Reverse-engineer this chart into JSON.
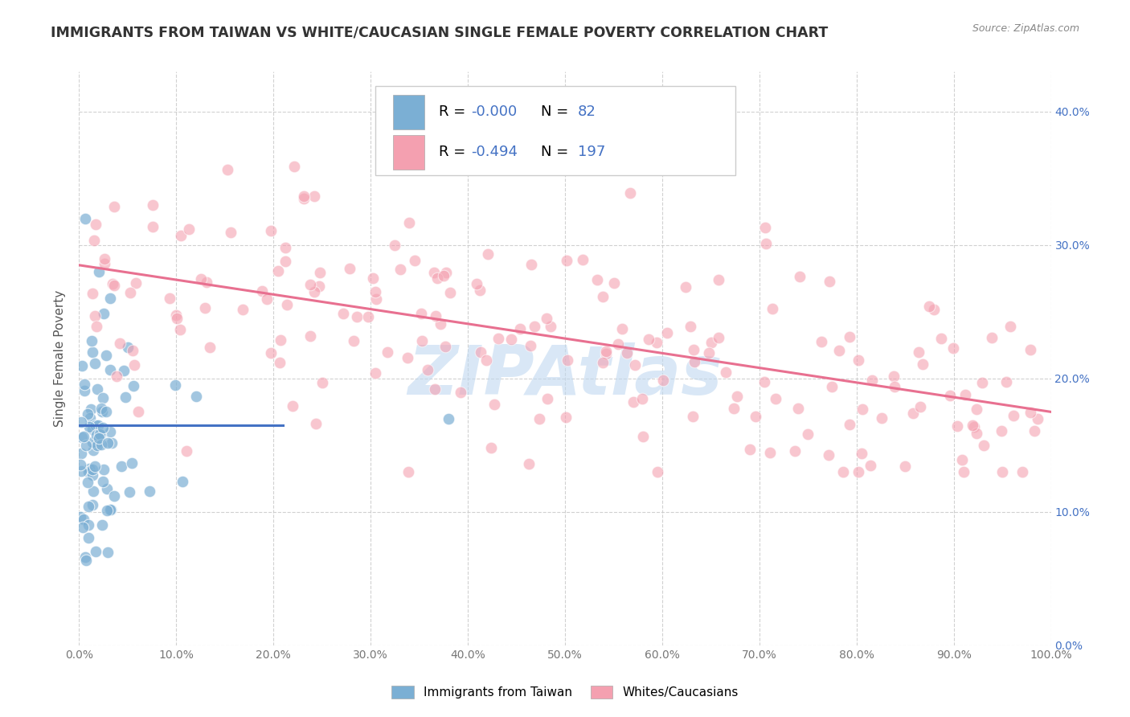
{
  "title": "IMMIGRANTS FROM TAIWAN VS WHITE/CAUCASIAN SINGLE FEMALE POVERTY CORRELATION CHART",
  "source": "Source: ZipAtlas.com",
  "ylabel": "Single Female Poverty",
  "xlim": [
    0,
    1
  ],
  "ylim": [
    0,
    0.43
  ],
  "xticks": [
    0.0,
    0.1,
    0.2,
    0.3,
    0.4,
    0.5,
    0.6,
    0.7,
    0.8,
    0.9,
    1.0
  ],
  "yticks": [
    0.0,
    0.1,
    0.2,
    0.3,
    0.4
  ],
  "ytick_labels": [
    "0.0%",
    "10.0%",
    "20.0%",
    "30.0%",
    "40.0%"
  ],
  "xtick_labels": [
    "0.0%",
    "10.0%",
    "20.0%",
    "30.0%",
    "40.0%",
    "50.0%",
    "60.0%",
    "70.0%",
    "80.0%",
    "90.0%",
    "100.0%"
  ],
  "blue_color": "#7bafd4",
  "pink_color": "#f4a0b0",
  "blue_line_color": "#4472c4",
  "pink_line_color": "#e87090",
  "accent_color": "#4472c4",
  "legend_label_blue": "Immigrants from Taiwan",
  "legend_label_pink": "Whites/Caucasians",
  "watermark": "ZIPAtlas",
  "watermark_color": "#c0d8f0",
  "background_color": "#ffffff",
  "grid_color": "#cccccc",
  "title_color": "#333333",
  "blue_trend_x0": 0.0,
  "blue_trend_x1": 0.21,
  "blue_trend_y0": 0.165,
  "blue_trend_y1": 0.165,
  "pink_trend_x0": 0.0,
  "pink_trend_x1": 1.0,
  "pink_trend_y0": 0.285,
  "pink_trend_y1": 0.175
}
